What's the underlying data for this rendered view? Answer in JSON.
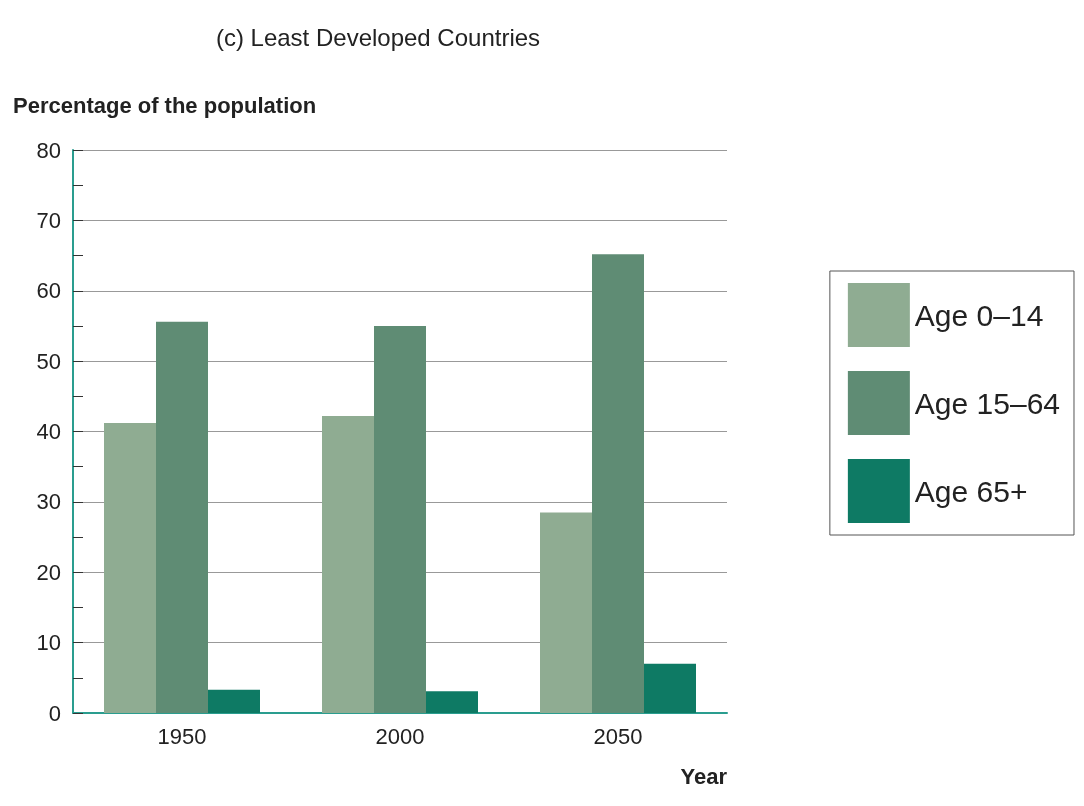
{
  "chart_data": {
    "type": "bar",
    "title": "(c) Least Developed Countries",
    "xlabel": "Year",
    "ylabel": "Percentage of the population",
    "categories": [
      "1950",
      "2000",
      "2050"
    ],
    "series": [
      {
        "name": "Age 0–14",
        "color": "#8fac92",
        "values": [
          41.2,
          42.2,
          28.5
        ]
      },
      {
        "name": "Age 15–64",
        "color": "#5f8c74",
        "values": [
          55.6,
          55,
          65.2
        ]
      },
      {
        "name": "Age 65+",
        "color": "#0e7a64",
        "values": [
          3.3,
          3.1,
          7
        ]
      }
    ],
    "ylim": [
      0,
      80
    ],
    "yticks": [
      0,
      {
        "value": 5,
        "label": null
      },
      10,
      {
        "value": 15,
        "label": null
      },
      20,
      {
        "value": 25,
        "label": null
      },
      30,
      {
        "value": 35,
        "label": null
      },
      40,
      {
        "value": 45,
        "label": null
      },
      50,
      {
        "value": 55,
        "label": null
      },
      60,
      {
        "value": 65,
        "label": null
      },
      70,
      {
        "value": 75,
        "label": null
      },
      80
    ],
    "grid": "y",
    "legend": "right"
  }
}
